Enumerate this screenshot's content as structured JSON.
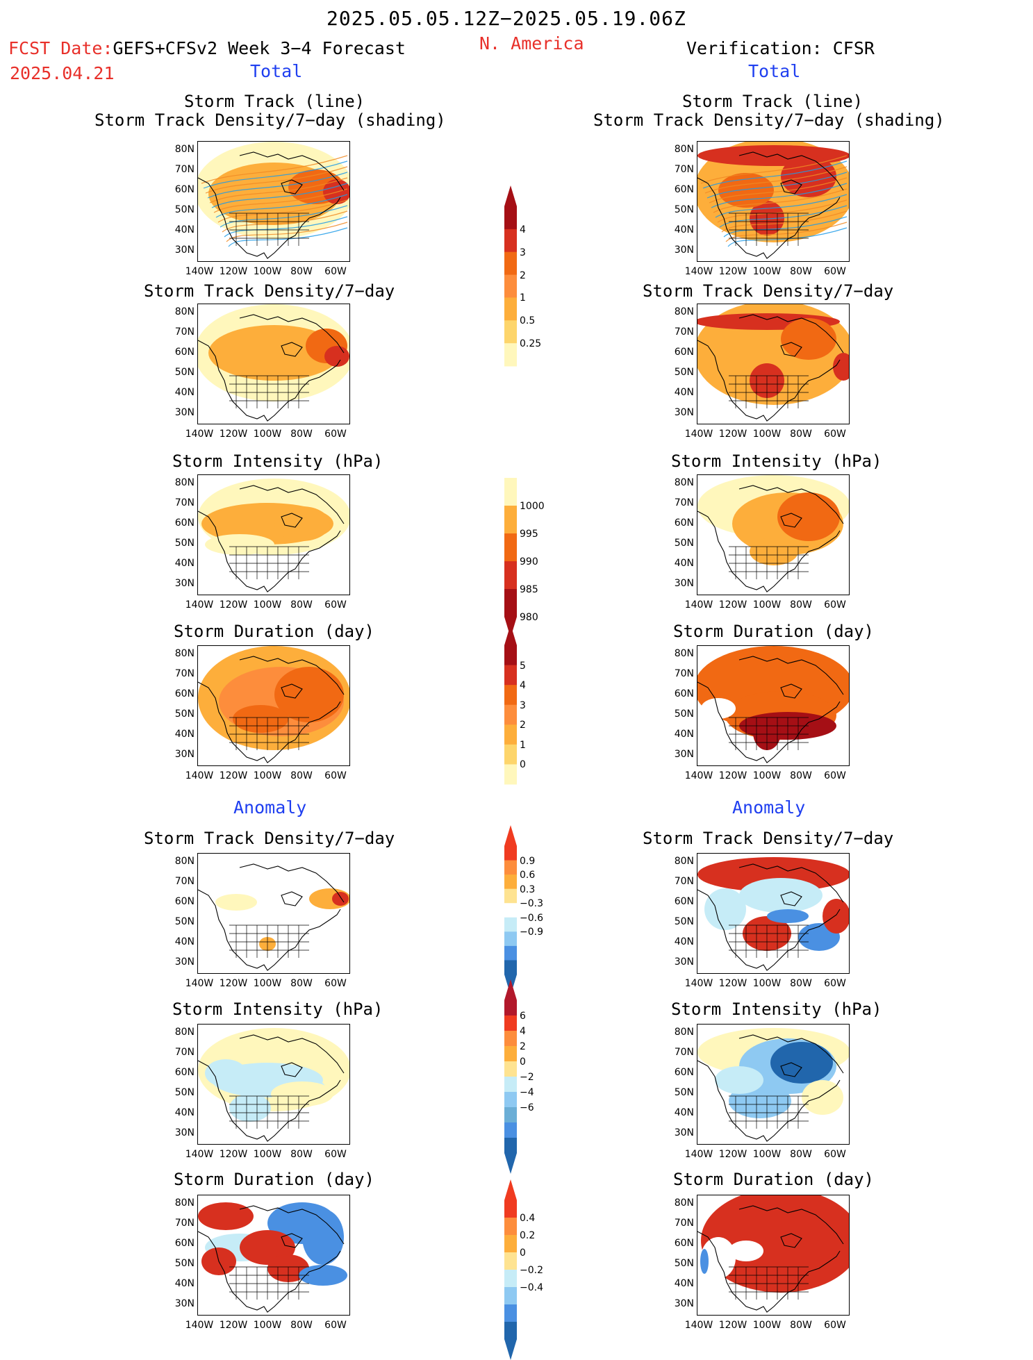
{
  "header": {
    "date_range": "2025.05.05.12Z−2025.05.19.06Z",
    "fcst_label": "FCST Date:",
    "forecast_title": "GEFS+CFSv2 Week 3−4 Forecast",
    "fcst_date": "2025.04.21",
    "region": "N. America",
    "verification": "Verification: CFSR",
    "total_left": "Total",
    "total_right": "Total",
    "anomaly_left": "Anomaly",
    "anomaly_right": "Anomaly"
  },
  "panels": {
    "track_line": "Storm Track (line)",
    "track_density_shading": "Storm Track Density/7−day (shading)",
    "track_density": "Storm Track Density/7−day",
    "intensity": "Storm Intensity (hPa)",
    "duration": "Storm Duration (day)"
  },
  "axes": {
    "lat": [
      "80N",
      "70N",
      "60N",
      "50N",
      "40N",
      "30N"
    ],
    "lon": [
      "140W",
      "120W",
      "100W",
      "80W",
      "60W"
    ]
  },
  "colorbars": {
    "density_total": {
      "labels": [
        "4",
        "3",
        "2",
        "1",
        "0.5",
        "0.25"
      ],
      "colors": [
        "#a50f15",
        "#d7301f",
        "#f16913",
        "#fd8d3c",
        "#fdae3b",
        "#fdd56b",
        "#fff7bc"
      ]
    },
    "intensity_total": {
      "labels": [
        "1000",
        "995",
        "990",
        "985",
        "980"
      ],
      "colors": [
        "#fff7bc",
        "#fdae3b",
        "#f16913",
        "#d7301f",
        "#a50f15"
      ]
    },
    "duration_total": {
      "labels": [
        "5",
        "4",
        "3",
        "2",
        "1",
        "0"
      ],
      "colors": [
        "#a50f15",
        "#d7301f",
        "#f16913",
        "#fd8d3c",
        "#fdae3b",
        "#fdd56b",
        "#fff7bc"
      ]
    },
    "density_anom": {
      "labels": [
        "0.9",
        "0.6",
        "0.3",
        "−0.3",
        "−0.6",
        "−0.9"
      ],
      "colors": [
        "#f03b20",
        "#fd8d3c",
        "#fdae3b",
        "#fee391",
        "#ffffff",
        "#c6ecf7",
        "#8ec9f2",
        "#4a90e2",
        "#2166ac"
      ]
    },
    "intensity_anom": {
      "labels": [
        "6",
        "4",
        "2",
        "0",
        "−2",
        "−4",
        "−6"
      ],
      "colors": [
        "#b2182b",
        "#f03b20",
        "#fd8d3c",
        "#fdae3b",
        "#fee391",
        "#c6ecf7",
        "#8ec9f2",
        "#6baed6",
        "#4a90e2",
        "#2166ac"
      ]
    },
    "duration_anom": {
      "labels": [
        "0.4",
        "0.2",
        "0",
        "−0.2",
        "−0.4"
      ],
      "colors": [
        "#f03b20",
        "#fd8d3c",
        "#fdae3b",
        "#fee391",
        "#c6ecf7",
        "#8ec9f2",
        "#4a90e2",
        "#2166ac"
      ]
    }
  }
}
